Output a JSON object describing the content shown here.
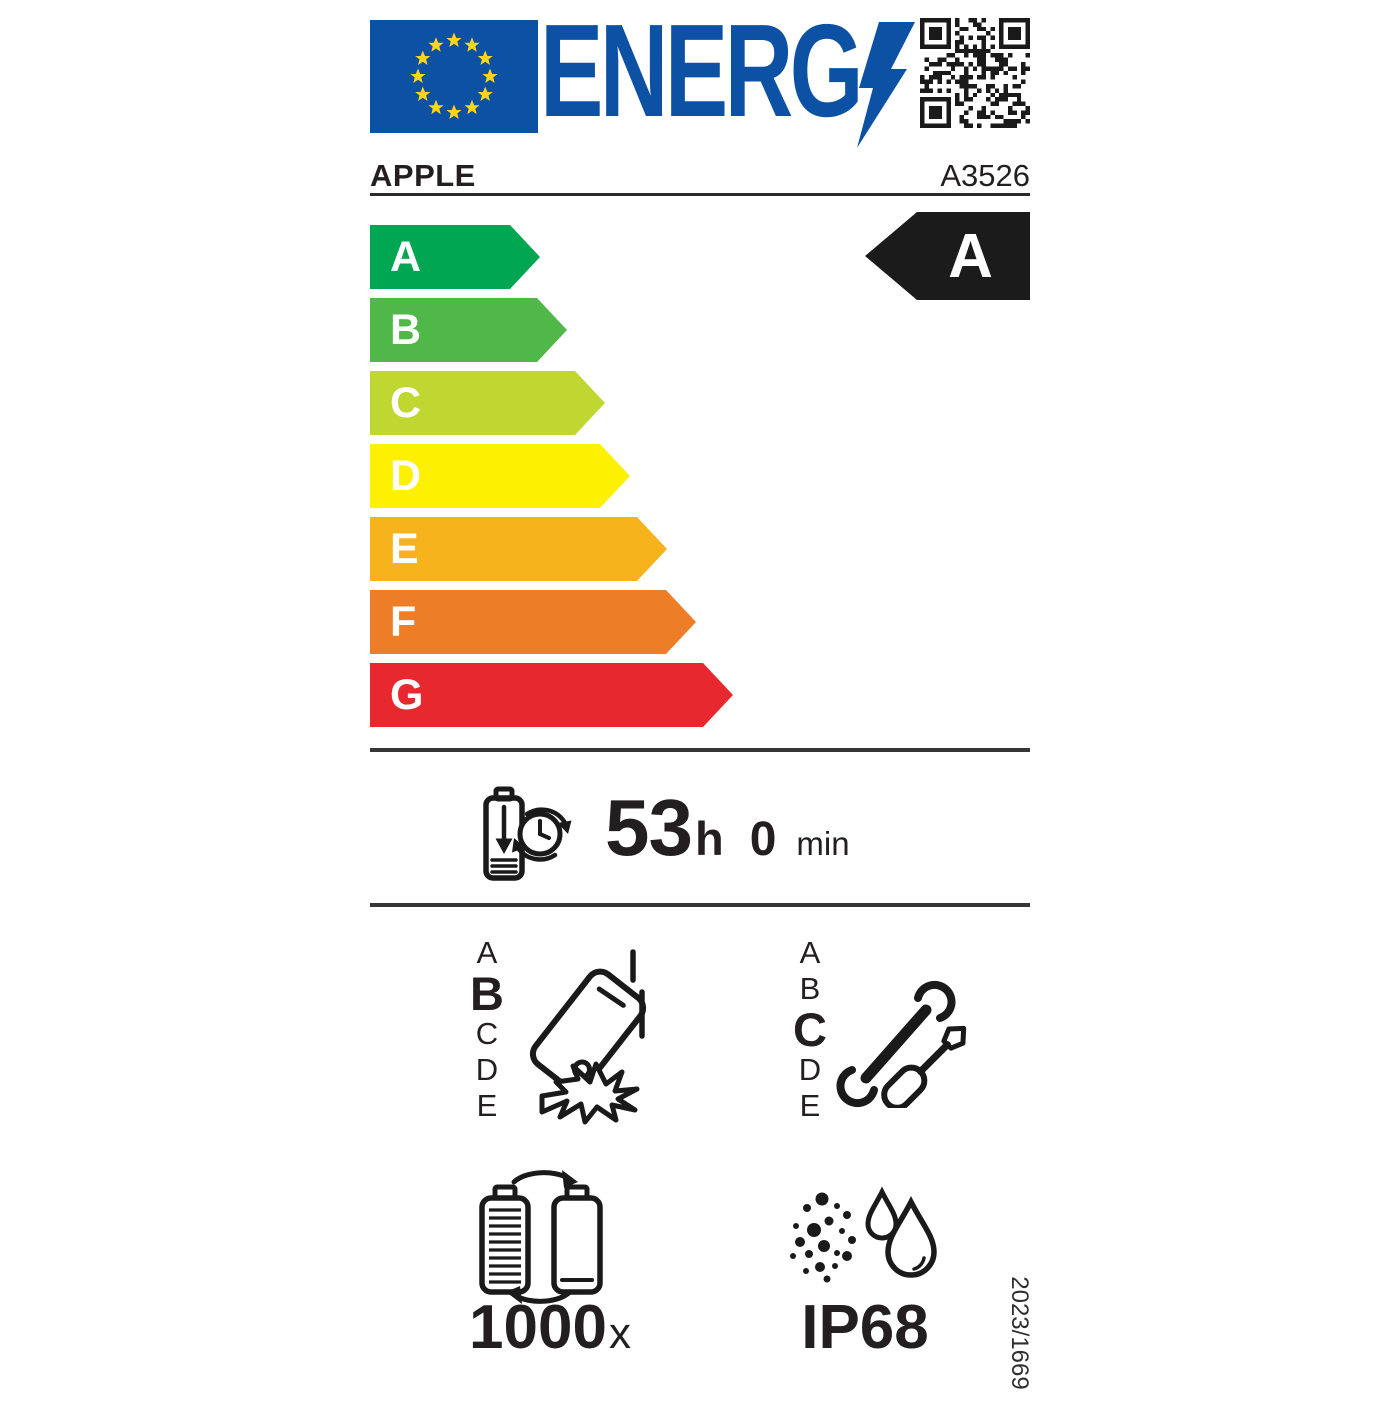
{
  "label": {
    "logo_text": "ENERG",
    "brand": "APPLE",
    "model": "A3526",
    "regulation": "2023/1669"
  },
  "colors": {
    "eu_flag_blue": "#0c51a3",
    "star_yellow": "#ffd617",
    "logo_blue": "#0c51a3",
    "ink": "#231f20",
    "rated_arrow_bg": "#1b1b1b",
    "rated_arrow_text": "#ffffff"
  },
  "energy_scale": {
    "rated_class": "A",
    "classes": [
      {
        "letter": "A",
        "color": "#00a651"
      },
      {
        "letter": "B",
        "color": "#50b848"
      },
      {
        "letter": "C",
        "color": "#bfd730"
      },
      {
        "letter": "D",
        "color": "#fdf000"
      },
      {
        "letter": "E",
        "color": "#f7b31c"
      },
      {
        "letter": "F",
        "color": "#ee7d27"
      },
      {
        "letter": "G",
        "color": "#e8282f"
      }
    ]
  },
  "battery_life": {
    "hours": "53",
    "hours_unit": "h",
    "minutes": "0",
    "minutes_unit": "min"
  },
  "drop_reliability": {
    "scale": [
      "A",
      "B",
      "C",
      "D",
      "E"
    ],
    "rated": "B"
  },
  "repairability": {
    "scale": [
      "A",
      "B",
      "C",
      "D",
      "E"
    ],
    "rated": "C"
  },
  "battery_cycles": {
    "value": "1000",
    "unit": "x"
  },
  "ingress_protection": {
    "rating": "IP68"
  }
}
